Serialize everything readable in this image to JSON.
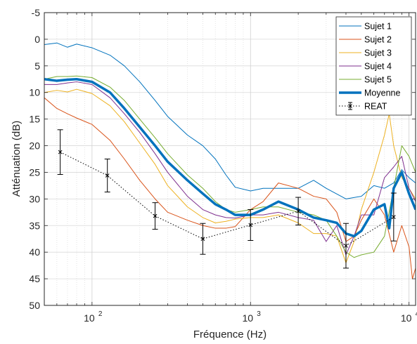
{
  "chart_data": {
    "type": "line",
    "title": "",
    "xlabel": "Fréquence (Hz)",
    "ylabel": "Atténuation (dB)",
    "xscale": "log",
    "xlim": [
      50,
      11000
    ],
    "ylim": [
      -5,
      50
    ],
    "y_reversed": true,
    "grid": true,
    "legend": "top-right",
    "x_ticks": [
      {
        "value": 100,
        "base": "10",
        "exp": "2"
      },
      {
        "value": 1000,
        "base": "10",
        "exp": "3"
      },
      {
        "value": 10000,
        "base": "10",
        "exp": "4"
      }
    ],
    "y_ticks": [
      -5,
      0,
      5,
      10,
      15,
      20,
      25,
      30,
      35,
      40,
      45,
      50
    ],
    "y_tick_labels": [
      "-5",
      "0",
      "5",
      "10",
      "15",
      "20",
      "25",
      "30",
      "35",
      "40",
      "45",
      "50"
    ],
    "series": [
      {
        "name": "Sujet 1",
        "color": "#0072BD",
        "width": 1,
        "points": [
          [
            50,
            1.0
          ],
          [
            60,
            0.7
          ],
          [
            70,
            1.5
          ],
          [
            80,
            0.9
          ],
          [
            100,
            1.6
          ],
          [
            130,
            3.0
          ],
          [
            160,
            5.0
          ],
          [
            200,
            8.0
          ],
          [
            250,
            11.5
          ],
          [
            300,
            14.5
          ],
          [
            400,
            18.0
          ],
          [
            500,
            20.0
          ],
          [
            600,
            22.5
          ],
          [
            700,
            25.5
          ],
          [
            800,
            27.8
          ],
          [
            1000,
            28.5
          ],
          [
            1200,
            28.0
          ],
          [
            1500,
            28.0
          ],
          [
            2000,
            28.0
          ],
          [
            2500,
            26.5
          ],
          [
            3000,
            28.0
          ],
          [
            4000,
            30.0
          ],
          [
            5000,
            29.5
          ],
          [
            6000,
            27.5
          ],
          [
            7000,
            28.0
          ],
          [
            8000,
            27.0
          ],
          [
            9000,
            24.5
          ],
          [
            10000,
            26.0
          ],
          [
            11000,
            27.0
          ]
        ]
      },
      {
        "name": "Sujet 2",
        "color": "#D95319",
        "width": 1,
        "points": [
          [
            50,
            11.0
          ],
          [
            60,
            13.0
          ],
          [
            70,
            14.0
          ],
          [
            80,
            14.8
          ],
          [
            100,
            16.0
          ],
          [
            130,
            19.0
          ],
          [
            160,
            22.5
          ],
          [
            200,
            26.5
          ],
          [
            250,
            30.0
          ],
          [
            300,
            32.5
          ],
          [
            400,
            34.0
          ],
          [
            500,
            35.0
          ],
          [
            600,
            35.5
          ],
          [
            700,
            35.5
          ],
          [
            800,
            35.2
          ],
          [
            1000,
            32.0
          ],
          [
            1200,
            30.5
          ],
          [
            1500,
            27.0
          ],
          [
            2000,
            28.0
          ],
          [
            2500,
            29.5
          ],
          [
            3000,
            30.0
          ],
          [
            3500,
            32.5
          ],
          [
            4000,
            38.0
          ],
          [
            4500,
            37.0
          ],
          [
            5000,
            34.0
          ],
          [
            6000,
            30.0
          ],
          [
            7000,
            33.0
          ],
          [
            8000,
            40.0
          ],
          [
            9000,
            35.0
          ],
          [
            10000,
            39.0
          ],
          [
            10500,
            45.0
          ],
          [
            11000,
            43.0
          ]
        ]
      },
      {
        "name": "Sujet 3",
        "color": "#EDB120",
        "width": 1,
        "points": [
          [
            50,
            10.0
          ],
          [
            60,
            9.6
          ],
          [
            70,
            9.9
          ],
          [
            80,
            9.4
          ],
          [
            100,
            10.2
          ],
          [
            130,
            12.5
          ],
          [
            160,
            15.5
          ],
          [
            200,
            19.5
          ],
          [
            250,
            23.5
          ],
          [
            300,
            27.5
          ],
          [
            400,
            31.5
          ],
          [
            500,
            33.5
          ],
          [
            600,
            34.5
          ],
          [
            700,
            34.2
          ],
          [
            800,
            33.8
          ],
          [
            1000,
            33.5
          ],
          [
            1200,
            33.5
          ],
          [
            1500,
            33.0
          ],
          [
            2000,
            34.5
          ],
          [
            2500,
            36.5
          ],
          [
            3000,
            36.5
          ],
          [
            3500,
            37.0
          ],
          [
            4000,
            42.0
          ],
          [
            4500,
            38.0
          ],
          [
            5000,
            32.0
          ],
          [
            6000,
            25.0
          ],
          [
            7000,
            18.0
          ],
          [
            7500,
            14.0
          ],
          [
            8000,
            20.0
          ],
          [
            9000,
            26.0
          ],
          [
            10000,
            28.0
          ],
          [
            11000,
            30.0
          ]
        ]
      },
      {
        "name": "Sujet 4",
        "color": "#7E2F8E",
        "width": 1,
        "points": [
          [
            50,
            8.5
          ],
          [
            60,
            8.5
          ],
          [
            70,
            8.2
          ],
          [
            80,
            8.0
          ],
          [
            100,
            8.5
          ],
          [
            130,
            11.0
          ],
          [
            160,
            14.0
          ],
          [
            200,
            17.5
          ],
          [
            250,
            21.5
          ],
          [
            300,
            25.0
          ],
          [
            400,
            29.5
          ],
          [
            500,
            32.0
          ],
          [
            600,
            33.0
          ],
          [
            700,
            33.5
          ],
          [
            800,
            33.6
          ],
          [
            1000,
            33.0
          ],
          [
            1200,
            33.0
          ],
          [
            1500,
            32.5
          ],
          [
            2000,
            33.5
          ],
          [
            2500,
            34.0
          ],
          [
            3000,
            38.0
          ],
          [
            3500,
            35.0
          ],
          [
            4000,
            40.5
          ],
          [
            4500,
            37.0
          ],
          [
            5000,
            33.0
          ],
          [
            6000,
            33.0
          ],
          [
            7000,
            26.0
          ],
          [
            8000,
            24.0
          ],
          [
            9000,
            22.0
          ],
          [
            10000,
            28.0
          ],
          [
            11000,
            30.5
          ]
        ]
      },
      {
        "name": "Sujet 5",
        "color": "#77AC30",
        "width": 1,
        "points": [
          [
            50,
            7.5
          ],
          [
            60,
            7.0
          ],
          [
            70,
            7.0
          ],
          [
            80,
            6.9
          ],
          [
            100,
            7.2
          ],
          [
            130,
            9.0
          ],
          [
            160,
            11.5
          ],
          [
            200,
            15.0
          ],
          [
            250,
            18.5
          ],
          [
            300,
            21.5
          ],
          [
            400,
            25.5
          ],
          [
            500,
            28.0
          ],
          [
            600,
            30.5
          ],
          [
            700,
            32.0
          ],
          [
            800,
            32.5
          ],
          [
            1000,
            32.0
          ],
          [
            1200,
            31.5
          ],
          [
            1500,
            31.5
          ],
          [
            2000,
            32.5
          ],
          [
            2500,
            33.0
          ],
          [
            3000,
            34.0
          ],
          [
            3500,
            37.0
          ],
          [
            4000,
            40.0
          ],
          [
            4500,
            41.0
          ],
          [
            5000,
            40.5
          ],
          [
            6000,
            40.0
          ],
          [
            7000,
            37.0
          ],
          [
            8000,
            28.0
          ],
          [
            9000,
            20.0
          ],
          [
            10000,
            22.0
          ],
          [
            11000,
            25.0
          ]
        ]
      },
      {
        "name": "Moyenne",
        "color": "#0072BD",
        "width": 3.5,
        "points": [
          [
            50,
            7.5
          ],
          [
            60,
            7.8
          ],
          [
            70,
            7.6
          ],
          [
            80,
            7.5
          ],
          [
            100,
            8.0
          ],
          [
            130,
            10.0
          ],
          [
            160,
            13.0
          ],
          [
            200,
            16.5
          ],
          [
            250,
            20.0
          ],
          [
            300,
            23.0
          ],
          [
            400,
            26.5
          ],
          [
            500,
            29.0
          ],
          [
            600,
            31.0
          ],
          [
            700,
            32.0
          ],
          [
            800,
            33.0
          ],
          [
            1000,
            33.0
          ],
          [
            1200,
            32.0
          ],
          [
            1500,
            30.5
          ],
          [
            2000,
            32.0
          ],
          [
            2500,
            33.5
          ],
          [
            3000,
            34.0
          ],
          [
            3500,
            34.5
          ],
          [
            4000,
            36.5
          ],
          [
            4500,
            37.0
          ],
          [
            5000,
            36.0
          ],
          [
            6000,
            32.0
          ],
          [
            7000,
            31.0
          ],
          [
            7500,
            35.5
          ],
          [
            8000,
            28.0
          ],
          [
            9000,
            25.0
          ],
          [
            10000,
            29.0
          ],
          [
            11000,
            32.0
          ]
        ]
      },
      {
        "name": "REAT",
        "color": "#000000",
        "width": 1,
        "dash": "1.5,2.5",
        "marker": "x",
        "points": [
          [
            63,
            21.2
          ],
          [
            125,
            25.6
          ],
          [
            250,
            33.2
          ],
          [
            500,
            37.5
          ],
          [
            1000,
            34.9
          ],
          [
            2000,
            32.3
          ],
          [
            4000,
            38.8
          ],
          [
            8000,
            33.4
          ]
        ],
        "errors": [
          4.2,
          3.1,
          2.5,
          2.9,
          2.9,
          2.6,
          4.2,
          4.5
        ]
      }
    ]
  }
}
